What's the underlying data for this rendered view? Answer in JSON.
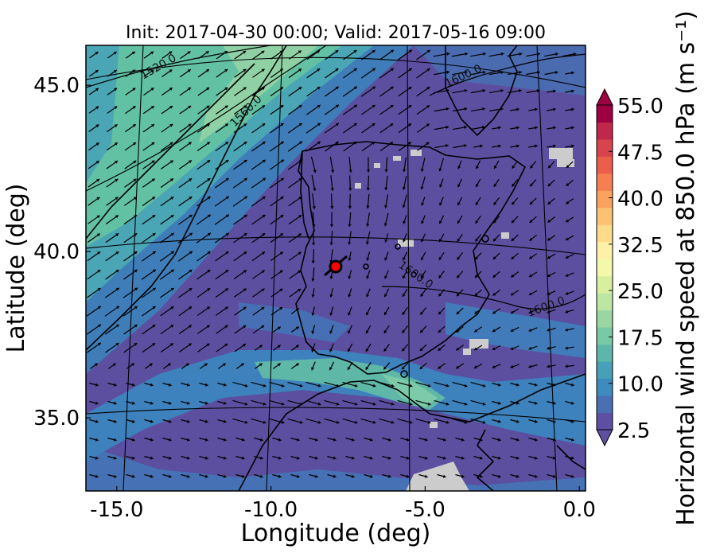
{
  "title": "Init: 2017-04-30 00:00; Valid: 2017-05-16 09:00",
  "chart_data": {
    "type": "heatmap",
    "title": "Init: 2017-04-30 00:00; Valid: 2017-05-16 09:00",
    "xlabel": "Longitude (deg)",
    "ylabel": "Latitude (deg)",
    "xlim": [
      -16.0,
      0.2
    ],
    "ylim": [
      32.8,
      46.2
    ],
    "x_ticks": [
      "-15.0",
      "-10.0",
      "-5.0",
      "0.0"
    ],
    "x_tick_values": [
      -15.0,
      -10.0,
      -5.0,
      0.0
    ],
    "y_ticks": [
      "35.0",
      "40.0",
      "45.0"
    ],
    "y_tick_values": [
      35.0,
      40.0,
      45.0
    ],
    "grid": true,
    "colorbar": {
      "label": "Horizontal wind speed at 850.0 hPa (m s⁻¹)",
      "ticks": [
        "2.5",
        "10.0",
        "17.5",
        "25.0",
        "32.5",
        "40.0",
        "47.5",
        "55.0"
      ],
      "tick_values": [
        2.5,
        10.0,
        17.5,
        25.0,
        32.5,
        40.0,
        47.5,
        55.0
      ],
      "range": [
        2.5,
        55.0
      ],
      "extend": "both"
    },
    "contour_labels": [
      {
        "text": "1520.0",
        "value": 1520.0
      },
      {
        "text": "1560.0",
        "value": 1560.0
      },
      {
        "text": "1600.0",
        "value": 1600.0
      },
      {
        "text": "1600.0",
        "value": 1600.0
      },
      {
        "text": "1600.0",
        "value": 1600.0
      }
    ],
    "marker": {
      "lon": -7.6,
      "lat": 39.4,
      "color": "#ff0000"
    },
    "wind_field": "arrows show 850 hPa wind direction; strong SW flow over the Atlantic, weaker flow over Iberia"
  },
  "colors": {
    "background": "#5c4fa0",
    "low": "#5e4fa2",
    "mid": "#3288bd",
    "high": "#66c2a5",
    "land_masked": "#cccccc",
    "marker": "#ff0000"
  }
}
